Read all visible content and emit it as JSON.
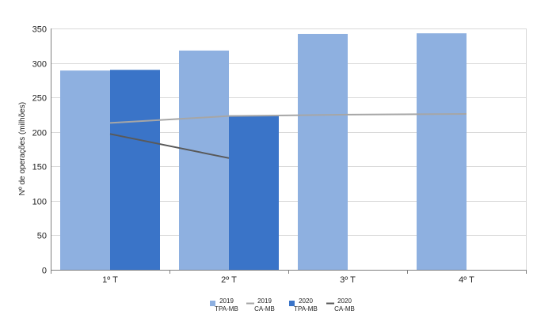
{
  "chart_data": {
    "type": "bar",
    "ylabel": "Nº de operações (milhões)",
    "xlabel": "",
    "categories": [
      "1º T",
      "2º T",
      "3º T",
      "4º T"
    ],
    "ylim": [
      0,
      350
    ],
    "yticks": [
      0,
      50,
      100,
      150,
      200,
      250,
      300,
      350
    ],
    "grid": true,
    "legend_position": "bottom",
    "series": [
      {
        "kind": "bar",
        "legend_line1": "2019",
        "legend_line2": "TPA-MB",
        "color": "#8eb0e0",
        "values": [
          289,
          318,
          342,
          343
        ]
      },
      {
        "kind": "line",
        "legend_line1": "2019",
        "legend_line2": "CA-MB",
        "color": "#a6a6a6",
        "values": [
          213,
          223,
          225,
          226
        ]
      },
      {
        "kind": "bar",
        "legend_line1": "2020",
        "legend_line2": "TPA-MB",
        "color": "#3a74c8",
        "values": [
          290,
          224,
          null,
          null
        ]
      },
      {
        "kind": "line",
        "legend_line1": "2020",
        "legend_line2": "CA-MB",
        "color": "#595959",
        "values": [
          197,
          162,
          null,
          null
        ]
      }
    ]
  }
}
